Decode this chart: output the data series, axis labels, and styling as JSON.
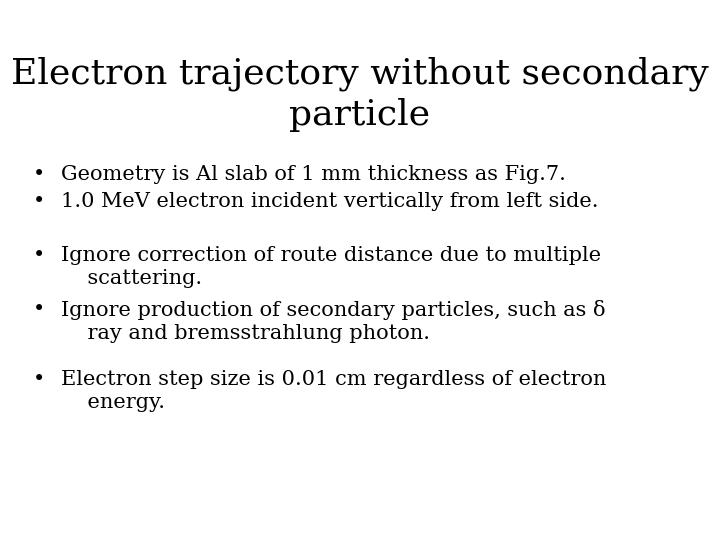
{
  "title_line1": "Electron trajectory without secondary",
  "title_line2": "particle",
  "background_color": "#ffffff",
  "text_color": "#000000",
  "title_fontsize": 26,
  "body_fontsize": 15,
  "font_family": "serif",
  "group1": [
    "Geometry is Al slab of 1 mm thickness as Fig.7.",
    "1.0 MeV electron incident vertically from left side."
  ],
  "group2_line1": [
    "Ignore correction of route distance due to multiple",
    "    scattering."
  ],
  "group2_line2": [
    "Ignore production of secondary particles, such as δ",
    "    ray and bremsstrahlung photon."
  ],
  "group2_line3": [
    "Electron step size is 0.01 cm regardless of electron",
    "    energy."
  ]
}
